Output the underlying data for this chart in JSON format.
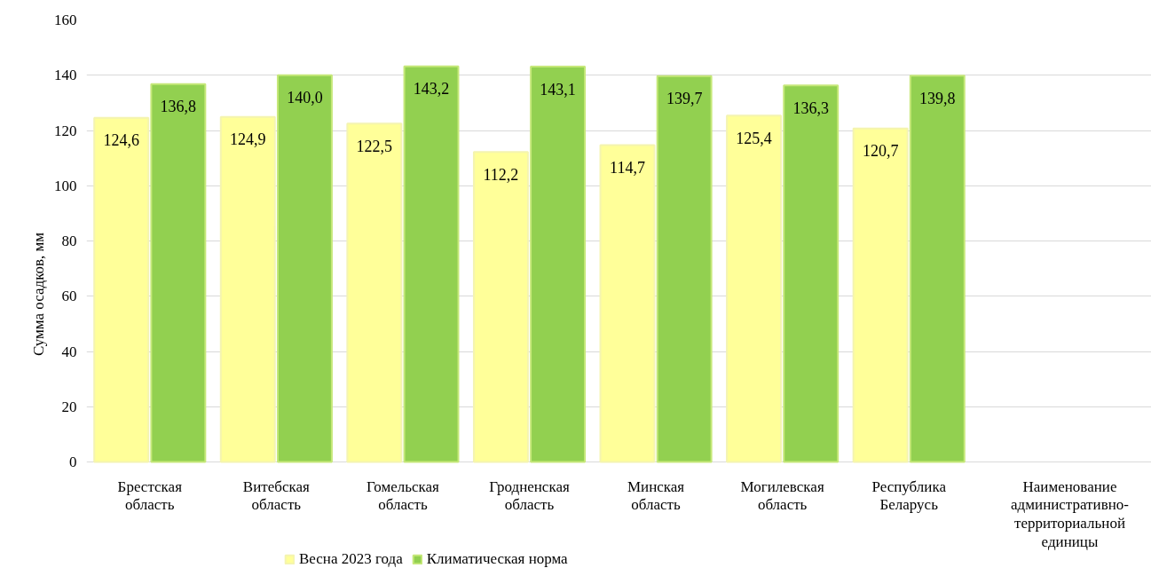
{
  "chart_data": {
    "type": "bar",
    "ylabel": "Сумма осадков, мм",
    "xlabel": "Наименование административно-территориальной единицы",
    "categories": [
      "Брестская область",
      "Витебская область",
      "Гомельская область",
      "Гродненская область",
      "Минская область",
      "Могилевская область",
      "Республика Беларусь"
    ],
    "series": [
      {
        "name": "Весна 2023 года",
        "color": "#ffff99",
        "values": [
          124.6,
          124.9,
          122.5,
          112.2,
          114.7,
          125.4,
          120.7
        ]
      },
      {
        "name": "Климатическая норма",
        "color": "#92d050",
        "values": [
          136.8,
          140.0,
          143.2,
          143.1,
          139.7,
          136.3,
          139.8
        ]
      }
    ],
    "value_labels": [
      [
        "124,6",
        "124,9",
        "122,5",
        "112,2",
        "114,7",
        "125,4",
        "120,7"
      ],
      [
        "136,8",
        "140,0",
        "143,2",
        "143,1",
        "139,7",
        "136,3",
        "139,8"
      ]
    ],
    "ylim": [
      0,
      160
    ],
    "yticks": [
      0,
      20,
      40,
      60,
      80,
      100,
      120,
      140,
      160
    ],
    "grid": "y",
    "legend": "bottom"
  }
}
